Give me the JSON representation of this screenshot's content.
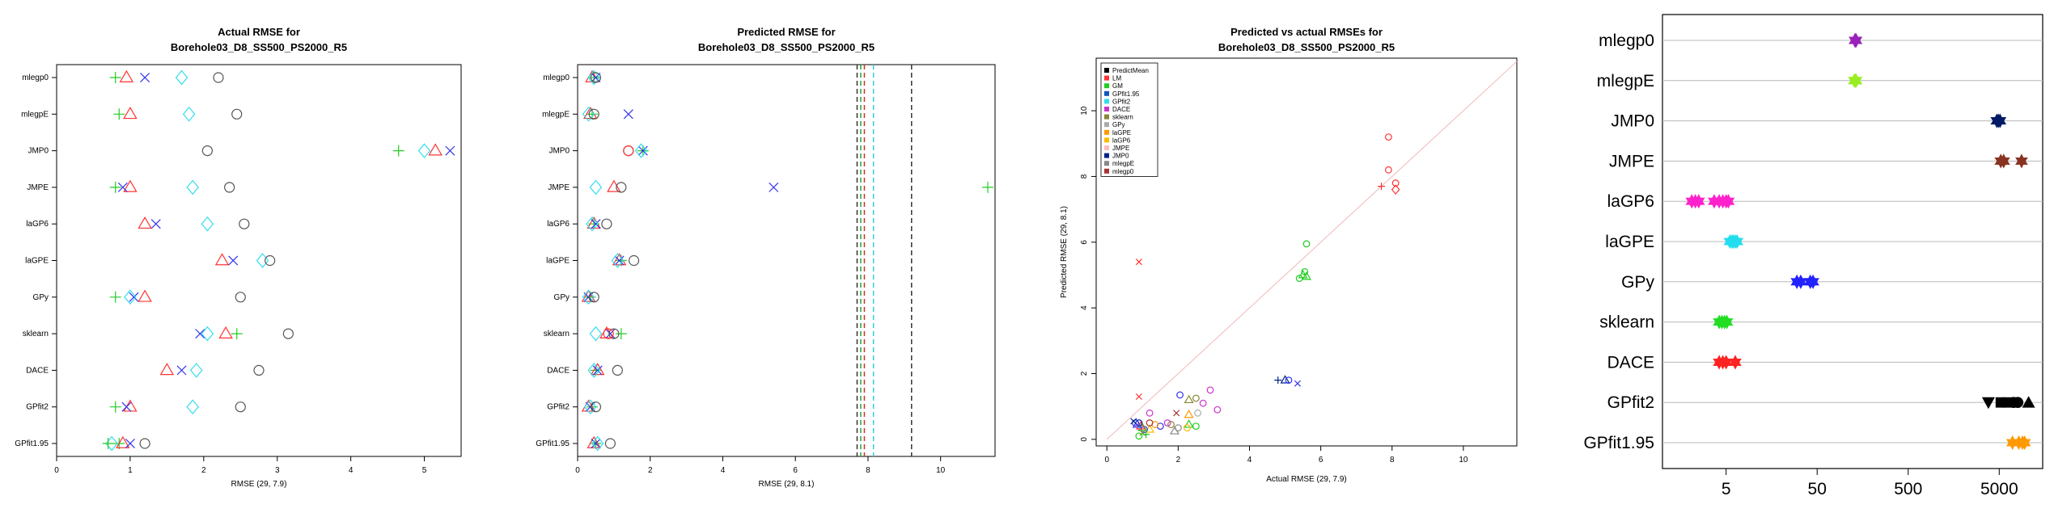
{
  "chart_data": [
    {
      "type": "scatter",
      "title_lines": [
        "Actual RMSE for",
        "Borehole03_D8_SS500_PS2000_R5"
      ],
      "xlabel": "RMSE (29, 7.9)",
      "xlim": [
        0,
        5.5
      ],
      "xticks": [
        0,
        1,
        2,
        3,
        4,
        5
      ],
      "categories": [
        "mlegp0",
        "mlegpE",
        "JMP0",
        "JMPE",
        "laGP6",
        "laGPE",
        "GPy",
        "sklearn",
        "DACE",
        "GPfit2",
        "GPfit1.95"
      ],
      "series": [
        {
          "key": "plus",
          "color": "#22cc22",
          "shape": "plus",
          "values": [
            0.8,
            0.85,
            4.65,
            0.8,
            null,
            null,
            0.8,
            2.45,
            null,
            0.8,
            0.85
          ]
        },
        {
          "key": "triangle",
          "color": "#ff3333",
          "shape": "triangle",
          "values": [
            0.95,
            1.0,
            5.15,
            1.0,
            1.2,
            2.25,
            1.2,
            2.3,
            1.5,
            1.0,
            0.9
          ]
        },
        {
          "key": "cross",
          "color": "#3333ee",
          "shape": "x",
          "values": [
            1.2,
            null,
            5.35,
            0.9,
            1.35,
            2.4,
            1.05,
            1.95,
            1.7,
            0.95,
            1.0
          ]
        },
        {
          "key": "diamond",
          "color": "#33ddee",
          "shape": "diamond",
          "values": [
            1.7,
            1.8,
            5.0,
            1.85,
            2.05,
            2.8,
            1.0,
            2.05,
            1.9,
            1.85,
            0.75
          ]
        },
        {
          "key": "circle",
          "color": "#555555",
          "shape": "circle",
          "values": [
            2.2,
            2.45,
            2.05,
            2.35,
            2.55,
            2.9,
            2.5,
            3.15,
            2.75,
            2.5,
            1.2
          ]
        },
        {
          "key": "plus-low",
          "color": "#22cc22",
          "shape": "plus",
          "values": [
            null,
            null,
            null,
            null,
            null,
            null,
            null,
            null,
            null,
            null,
            0.7
          ]
        }
      ]
    },
    {
      "type": "scatter",
      "title_lines": [
        "Predicted RMSE for",
        "Borehole03_D8_SS500_PS2000_R5"
      ],
      "xlabel": "RMSE (29, 8.1)",
      "xlim": [
        0,
        11.5
      ],
      "xticks": [
        0,
        2,
        4,
        6,
        8,
        10
      ],
      "categories": [
        "mlegp0",
        "mlegpE",
        "JMP0",
        "JMPE",
        "laGP6",
        "laGPE",
        "GPy",
        "sklearn",
        "DACE",
        "GPfit2",
        "GPfit1.95"
      ],
      "vlines": [
        {
          "x": 7.7,
          "color": "#333333"
        },
        {
          "x": 7.8,
          "color": "#22aa22"
        },
        {
          "x": 7.9,
          "color": "#cc3333"
        },
        {
          "x": 8.15,
          "color": "#33ccdd"
        },
        {
          "x": 9.2,
          "color": "#333333"
        }
      ],
      "series": [
        {
          "key": "plus",
          "color": "#22cc22",
          "shape": "plus",
          "values": [
            0.45,
            0.4,
            1.8,
            11.3,
            0.45,
            1.2,
            0.35,
            1.2,
            0.5,
            0.4,
            0.5
          ]
        },
        {
          "key": "triangle",
          "color": "#ff3333",
          "shape": "triangle",
          "values": [
            0.4,
            0.35,
            null,
            1.0,
            0.45,
            1.15,
            0.3,
            0.8,
            0.55,
            0.3,
            0.45
          ]
        },
        {
          "key": "cross",
          "color": "#3333ee",
          "shape": "x",
          "values": [
            0.5,
            1.4,
            1.8,
            5.4,
            0.5,
            1.15,
            0.3,
            0.9,
            0.55,
            0.35,
            0.5
          ]
        },
        {
          "key": "diamond",
          "color": "#33ddee",
          "shape": "diamond",
          "values": [
            0.45,
            0.3,
            1.75,
            0.5,
            0.4,
            1.1,
            0.3,
            0.5,
            0.45,
            0.35,
            0.55
          ]
        },
        {
          "key": "circle",
          "color": "#555555",
          "shape": "circle",
          "values": [
            0.5,
            0.45,
            1.4,
            1.2,
            0.8,
            1.55,
            0.45,
            1.0,
            1.1,
            0.5,
            0.9
          ]
        },
        {
          "key": "circle-red",
          "color": "#ff3333",
          "shape": "circle",
          "values": [
            null,
            null,
            1.4,
            null,
            null,
            null,
            null,
            0.85,
            null,
            null,
            null
          ]
        }
      ]
    },
    {
      "type": "scatter",
      "title_lines": [
        "Predicted vs actual RMSEs for",
        "Borehole03_D8_SS500_PS2000_R5"
      ],
      "xlabel": "Actual RMSE (29, 7.9)",
      "ylabel": "Predicted RMSE (29, 8.1)",
      "xlim": [
        -0.3,
        11.5
      ],
      "ylim": [
        -0.2,
        11.6
      ],
      "xticks": [
        0,
        2,
        4,
        6,
        8,
        10
      ],
      "yticks": [
        0,
        2,
        4,
        6,
        8,
        10
      ],
      "legend_position": "top-left",
      "legend": [
        {
          "name": "PredictMean",
          "color": "#000000"
        },
        {
          "name": "LM",
          "color": "#ff3333"
        },
        {
          "name": "GM",
          "color": "#22cc22"
        },
        {
          "name": "GPfit1.95",
          "color": "#1155bb"
        },
        {
          "name": "GPfit2",
          "color": "#33ddee"
        },
        {
          "name": "DACE",
          "color": "#cc33cc"
        },
        {
          "name": "sklearn",
          "color": "#888833"
        },
        {
          "name": "GPy",
          "color": "#aaaaaa"
        },
        {
          "name": "laGPE",
          "color": "#ff9900"
        },
        {
          "name": "laGP6",
          "color": "#ffbb00"
        },
        {
          "name": "JMPE",
          "color": "#ffbbbb"
        },
        {
          "name": "JMP0",
          "color": "#002288"
        },
        {
          "name": "mlegpE",
          "color": "#888888"
        },
        {
          "name": "mlegp0",
          "color": "#aa3333"
        }
      ],
      "points": [
        {
          "x": 7.9,
          "y": 9.2,
          "color": "#ff3333",
          "shape": "circle"
        },
        {
          "x": 7.9,
          "y": 8.2,
          "color": "#ff3333",
          "shape": "circle"
        },
        {
          "x": 8.1,
          "y": 7.8,
          "color": "#ff3333",
          "shape": "circle"
        },
        {
          "x": 8.1,
          "y": 7.6,
          "color": "#ff3333",
          "shape": "diamond"
        },
        {
          "x": 7.7,
          "y": 7.7,
          "color": "#ff3333",
          "shape": "plus"
        },
        {
          "x": 0.9,
          "y": 5.4,
          "color": "#ff3333",
          "shape": "x"
        },
        {
          "x": 0.9,
          "y": 1.3,
          "color": "#ff3333",
          "shape": "x"
        },
        {
          "x": 5.6,
          "y": 5.95,
          "color": "#22cc22",
          "shape": "circle"
        },
        {
          "x": 5.55,
          "y": 5.1,
          "color": "#22cc22",
          "shape": "circle"
        },
        {
          "x": 5.4,
          "y": 4.9,
          "color": "#22cc22",
          "shape": "circle"
        },
        {
          "x": 5.6,
          "y": 4.95,
          "color": "#22cc22",
          "shape": "triangle"
        },
        {
          "x": 5.5,
          "y": 5.0,
          "color": "#22cc22",
          "shape": "triangle"
        },
        {
          "x": 4.8,
          "y": 1.8,
          "color": "#002288",
          "shape": "plus"
        },
        {
          "x": 5.0,
          "y": 1.8,
          "color": "#002288",
          "shape": "triangle"
        },
        {
          "x": 5.1,
          "y": 1.8,
          "color": "#3333ee",
          "shape": "circle"
        },
        {
          "x": 5.35,
          "y": 1.7,
          "color": "#3333ee",
          "shape": "x"
        },
        {
          "x": 2.9,
          "y": 1.5,
          "color": "#cc33cc",
          "shape": "circle"
        },
        {
          "x": 3.1,
          "y": 0.9,
          "color": "#cc33cc",
          "shape": "circle"
        },
        {
          "x": 2.7,
          "y": 1.1,
          "color": "#cc33cc",
          "shape": "circle"
        },
        {
          "x": 2.5,
          "y": 1.25,
          "color": "#888833",
          "shape": "circle"
        },
        {
          "x": 2.3,
          "y": 1.2,
          "color": "#888833",
          "shape": "triangle"
        },
        {
          "x": 2.05,
          "y": 1.35,
          "color": "#3333ee",
          "shape": "circle"
        },
        {
          "x": 2.55,
          "y": 0.8,
          "color": "#aaaaaa",
          "shape": "circle"
        },
        {
          "x": 2.3,
          "y": 0.75,
          "color": "#ff9900",
          "shape": "triangle"
        },
        {
          "x": 1.95,
          "y": 0.8,
          "color": "#aa3333",
          "shape": "x"
        },
        {
          "x": 1.2,
          "y": 0.8,
          "color": "#cc33cc",
          "shape": "circle"
        },
        {
          "x": 2.5,
          "y": 0.4,
          "color": "#22cc22",
          "shape": "circle"
        },
        {
          "x": 2.3,
          "y": 0.45,
          "color": "#22cc22",
          "shape": "triangle"
        },
        {
          "x": 2.25,
          "y": 0.35,
          "color": "#ffbb00",
          "shape": "circle"
        },
        {
          "x": 2.0,
          "y": 0.35,
          "color": "#888888",
          "shape": "circle"
        },
        {
          "x": 1.9,
          "y": 0.25,
          "color": "#888888",
          "shape": "triangle"
        },
        {
          "x": 1.8,
          "y": 0.45,
          "color": "#888833",
          "shape": "circle"
        },
        {
          "x": 1.7,
          "y": 0.5,
          "color": "#cc33cc",
          "shape": "circle"
        },
        {
          "x": 1.5,
          "y": 0.4,
          "color": "#3333ee",
          "shape": "circle"
        },
        {
          "x": 1.35,
          "y": 0.45,
          "color": "#ff9900",
          "shape": "circle"
        },
        {
          "x": 1.2,
          "y": 0.3,
          "color": "#ffbb00",
          "shape": "triangle"
        },
        {
          "x": 1.05,
          "y": 0.3,
          "color": "#3333ee",
          "shape": "circle"
        },
        {
          "x": 1.0,
          "y": 0.35,
          "color": "#22cc22",
          "shape": "triangle"
        },
        {
          "x": 0.95,
          "y": 0.4,
          "color": "#ff3333",
          "shape": "triangle"
        },
        {
          "x": 0.9,
          "y": 0.5,
          "color": "#002288",
          "shape": "circle"
        },
        {
          "x": 0.85,
          "y": 0.45,
          "color": "#3333ee",
          "shape": "triangle"
        },
        {
          "x": 0.8,
          "y": 0.5,
          "color": "#3333ee",
          "shape": "circle"
        },
        {
          "x": 0.75,
          "y": 0.55,
          "color": "#002288",
          "shape": "x"
        },
        {
          "x": 1.0,
          "y": 0.2,
          "color": "#888833",
          "shape": "x"
        },
        {
          "x": 0.9,
          "y": 0.1,
          "color": "#22cc22",
          "shape": "circle"
        },
        {
          "x": 1.1,
          "y": 0.15,
          "color": "#22cc22",
          "shape": "plus"
        },
        {
          "x": 1.2,
          "y": 0.5,
          "color": "#aa3333",
          "shape": "circle"
        }
      ]
    },
    {
      "type": "scatter",
      "xscale": "log",
      "xlim": [
        1,
        15000
      ],
      "xticks": [
        5,
        50,
        500,
        5000
      ],
      "xtick_labels": [
        "5",
        "50",
        "500",
        "5000"
      ],
      "grid": "horizontal",
      "categories": [
        "mlegp0",
        "mlegpE",
        "JMP0",
        "JMPE",
        "laGP6",
        "laGPE",
        "GPy",
        "sklearn",
        "DACE",
        "GPfit2",
        "GPfit1.95"
      ],
      "rows": [
        {
          "color": "#9922bb",
          "shape": "star",
          "values": [
            130,
            132,
            134
          ]
        },
        {
          "color": "#99ee22",
          "shape": "star",
          "values": [
            128,
            131,
            134
          ]
        },
        {
          "color": "#001a66",
          "shape": "star",
          "values": [
            4700,
            4900,
            5100
          ]
        },
        {
          "color": "#883322",
          "shape": "star",
          "values": [
            5200,
            5600,
            8800
          ]
        },
        {
          "color": "#ff22cc",
          "shape": "star",
          "values": [
            2.1,
            2.3,
            2.5,
            3.7,
            4.2,
            4.6,
            5.0,
            5.3
          ]
        },
        {
          "color": "#22ddee",
          "shape": "star",
          "values": [
            5.5,
            5.8,
            6.0,
            6.3,
            6.6
          ]
        },
        {
          "color": "#2222ff",
          "shape": "star",
          "values": [
            30,
            33,
            42,
            45
          ]
        },
        {
          "color": "#22dd22",
          "shape": "star",
          "values": [
            4.2,
            4.5,
            4.8,
            5.1
          ]
        },
        {
          "color": "#ff2222",
          "shape": "star",
          "values": [
            4.2,
            4.6,
            5.0,
            6.3
          ]
        },
        {
          "color": "#000000",
          "shape": "mixed",
          "values": [
            3800,
            5200,
            6200,
            7200,
            8000,
            10500
          ]
        },
        {
          "color": "#ff9900",
          "shape": "star",
          "values": [
            7000,
            8200,
            9000,
            9500
          ]
        }
      ]
    }
  ]
}
